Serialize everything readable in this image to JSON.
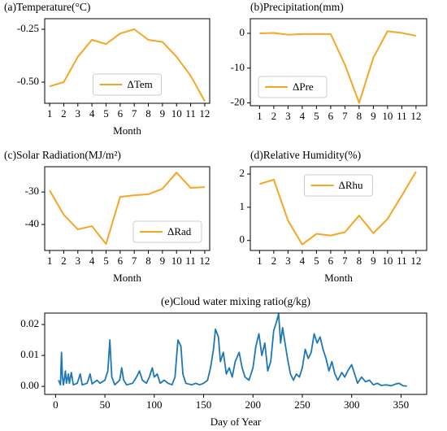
{
  "chart_data": [
    {
      "type": "line",
      "title": "(a)Temperature(°C)",
      "x_label": "Month",
      "x": [
        1,
        2,
        3,
        4,
        5,
        6,
        7,
        8,
        9,
        10,
        11,
        12
      ],
      "xlim": [
        0.65,
        12.35
      ],
      "xticks": [
        1,
        2,
        3,
        4,
        5,
        6,
        7,
        8,
        9,
        10,
        11,
        12
      ],
      "ylim": [
        -0.6,
        -0.2
      ],
      "yticks": [
        {
          "value": -0.5,
          "label": "-0.50"
        },
        -0.25
      ],
      "legend": "lower center",
      "series": [
        {
          "name": "ΔTem",
          "color": "#f5a623",
          "values": [
            -0.52,
            -0.5,
            -0.38,
            -0.3,
            -0.32,
            -0.27,
            -0.25,
            -0.3,
            -0.31,
            -0.38,
            -0.47,
            -0.59
          ]
        }
      ]
    },
    {
      "type": "line",
      "title": "(b)Precipitation(mm)",
      "x": [
        1,
        2,
        3,
        4,
        5,
        6,
        7,
        8,
        9,
        10,
        11,
        12
      ],
      "xlim": [
        0.35,
        12.75
      ],
      "xticks": [
        1,
        2,
        3,
        4,
        5,
        6,
        7,
        8,
        9,
        10,
        11,
        12
      ],
      "ylim": [
        -20.8,
        4.2
      ],
      "yticks": [
        -20,
        -10,
        0
      ],
      "legend": "lower left",
      "series": [
        {
          "name": "ΔPre",
          "color": "#f5a623",
          "values": [
            0,
            0.1,
            -0.4,
            -0.2,
            -0.2,
            -0.2,
            -9,
            -20,
            -7,
            0.6,
            0.1,
            -0.7
          ]
        }
      ]
    },
    {
      "type": "line",
      "title": "(c)Solar Radiation(MJ/m²)",
      "x_label": "Month",
      "x": [
        1,
        2,
        3,
        4,
        5,
        6,
        7,
        8,
        9,
        10,
        11,
        12
      ],
      "xlim": [
        0.65,
        12.35
      ],
      "xticks": [
        1,
        2,
        3,
        4,
        5,
        6,
        7,
        8,
        9,
        10,
        11,
        12
      ],
      "ylim": [
        -48,
        -22.2
      ],
      "yticks": [
        -40,
        -30
      ],
      "legend": "lower right",
      "series": [
        {
          "name": "ΔRad",
          "color": "#f5a623",
          "values": [
            -29.5,
            -37,
            -41.5,
            -40.5,
            -46,
            -31.5,
            -31,
            -30.7,
            -29,
            -24,
            -28.7,
            -28.5
          ]
        }
      ]
    },
    {
      "type": "line",
      "title": "(d)Relative Humidity(%)",
      "x_label": "Month",
      "x": [
        1,
        2,
        3,
        4,
        5,
        6,
        7,
        8,
        9,
        10,
        11,
        12
      ],
      "xlim": [
        0.35,
        12.75
      ],
      "xticks": [
        1,
        2,
        3,
        4,
        5,
        6,
        7,
        8,
        9,
        10,
        11,
        12
      ],
      "ylim": [
        -0.3,
        2.22
      ],
      "yticks": [
        0,
        1,
        2
      ],
      "legend": "upper center",
      "series": [
        {
          "name": "ΔRhu",
          "color": "#f5a623",
          "values": [
            1.7,
            1.83,
            0.6,
            -0.12,
            0.2,
            0.15,
            0.25,
            0.75,
            0.22,
            0.65,
            1.35,
            2.07
          ]
        }
      ]
    },
    {
      "type": "line",
      "title": "(e)Cloud water mixing ratio(g/kg)",
      "x_label": "Day of Year",
      "xlim": [
        -11,
        376
      ],
      "xticks": [
        0,
        50,
        100,
        150,
        200,
        250,
        300,
        350
      ],
      "ylim": [
        -0.0026,
        0.0237
      ],
      "yticks": [
        {
          "value": 0,
          "label": "0.00"
        },
        0.01,
        0.02
      ],
      "x": [
        3,
        5,
        6,
        7,
        8,
        10,
        11,
        13,
        14,
        16,
        18,
        22,
        25,
        27,
        32,
        35,
        37,
        42,
        45,
        50,
        53,
        55,
        57,
        60,
        65,
        67,
        69,
        72,
        78,
        82,
        85,
        88,
        92,
        95,
        98,
        100,
        103,
        106,
        110,
        114,
        118,
        121,
        124,
        127,
        129,
        132,
        138,
        142,
        146,
        150,
        154,
        157,
        160,
        162,
        165,
        167,
        170,
        173,
        176,
        179,
        182,
        186,
        189,
        192,
        196,
        200,
        203,
        206,
        209,
        212,
        215,
        218,
        221,
        224,
        226,
        228,
        230,
        232,
        235,
        238,
        241,
        244,
        247,
        250,
        253,
        256,
        259,
        262,
        265,
        268,
        271,
        274,
        277,
        280,
        283,
        286,
        290,
        293,
        296,
        300,
        303,
        306,
        310,
        314,
        318,
        322,
        326,
        330,
        335,
        340,
        345,
        348,
        352,
        356
      ],
      "series": [
        {
          "color": "#1f77b4",
          "values": [
            0.002,
            0.0005,
            0.011,
            0.003,
            0.0005,
            0.005,
            0.001,
            0.004,
            0.001,
            0.0045,
            0.0005,
            0.001,
            0.004,
            0.0005,
            0.001,
            0.004,
            0.0008,
            0.002,
            0.001,
            0.002,
            0.005,
            0.015,
            0.003,
            0.0005,
            0.002,
            0.006,
            0.002,
            0.0005,
            0.001,
            0.003,
            0.005,
            0.002,
            0.001,
            0.003,
            0.006,
            0.003,
            0.004,
            0.001,
            0.002,
            0.001,
            0.0005,
            0.003,
            0.015,
            0.013,
            0.004,
            0.001,
            0.0005,
            0.001,
            0.0005,
            0.001,
            0.002,
            0.006,
            0.012,
            0.0185,
            0.016,
            0.008,
            0.011,
            0.004,
            0.006,
            0.003,
            0.008,
            0.011,
            0.006,
            0.003,
            0.002,
            0.006,
            0.013,
            0.017,
            0.01,
            0.014,
            0.005,
            0.008,
            0.018,
            0.021,
            0.0235,
            0.014,
            0.019,
            0.015,
            0.009,
            0.004,
            0.002,
            0.004,
            0.003,
            0.006,
            0.012,
            0.009,
            0.011,
            0.017,
            0.014,
            0.016,
            0.012,
            0.009,
            0.005,
            0.008,
            0.004,
            0.002,
            0.0045,
            0.003,
            0.005,
            0.007,
            0.004,
            0.001,
            0.003,
            0.0015,
            0.002,
            0.0005,
            0.001,
            0.0003,
            0.0005,
            0.0002,
            0.0008,
            0.001,
            0.0002,
            0.0001
          ]
        }
      ]
    }
  ]
}
